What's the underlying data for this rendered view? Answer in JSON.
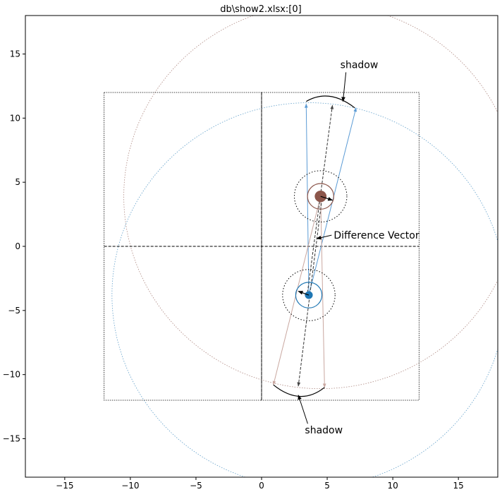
{
  "chart_data": {
    "type": "scatter",
    "title": "db\\show2.xlsx:[0]",
    "xlabel": "",
    "ylabel": "",
    "xlim": [
      -18,
      18
    ],
    "ylim": [
      -18,
      18
    ],
    "xticks": [
      -15,
      -10,
      -5,
      0,
      5,
      10,
      15
    ],
    "yticks": [
      -15,
      -10,
      -5,
      0,
      5,
      10,
      15
    ],
    "xtick_labels": [
      "−15",
      "−10",
      "−5",
      "0",
      "5",
      "10",
      "15"
    ],
    "ytick_labels": [
      "−15",
      "−10",
      "−5",
      "0",
      "5",
      "10",
      "15"
    ],
    "grid": false,
    "colors": {
      "blue": "#1f77b4",
      "brown": "#8c564b",
      "black": "#000000",
      "blue_ray": "#5b9bd5",
      "brown_ray": "#c9a7a0"
    },
    "boxes": [
      {
        "x0": -12,
        "y0": -12,
        "x1": 0,
        "y1": 12
      },
      {
        "x0": 0,
        "y0": -12,
        "x1": 12,
        "y1": 12
      }
    ],
    "axis_lines": {
      "h_from": -12,
      "h_to": 12,
      "v_from": -12,
      "v_to": 12
    },
    "objects": [
      {
        "color": "brown",
        "center": [
          4.5,
          3.9
        ],
        "marker_r": 0.45,
        "inner_r": 1.0,
        "outer_r": 2.0,
        "velocity_to": [
          5.4,
          3.6
        ],
        "big_r": 15.0
      },
      {
        "color": "blue",
        "center": [
          3.6,
          -3.8
        ],
        "marker_r": 0.3,
        "inner_r": 1.0,
        "outer_r": 2.0,
        "velocity_to": [
          2.8,
          -3.5
        ],
        "big_r": 15.0
      }
    ],
    "rays": [
      {
        "color": "blue_ray",
        "from": [
          3.6,
          -3.8
        ],
        "to": [
          3.4,
          11.1
        ]
      },
      {
        "color": "blue_ray",
        "from": [
          3.6,
          -3.8
        ],
        "to": [
          7.2,
          10.8
        ]
      },
      {
        "color": "brown_ray",
        "from": [
          4.5,
          3.9
        ],
        "to": [
          0.9,
          -10.8
        ]
      },
      {
        "color": "brown_ray",
        "from": [
          4.5,
          3.9
        ],
        "to": [
          4.8,
          -11.0
        ]
      }
    ],
    "difference_vectors": [
      {
        "from": [
          4.6,
          3.7
        ],
        "to": [
          2.8,
          -10.9
        ]
      },
      {
        "from": [
          3.5,
          -3.6
        ],
        "to": [
          5.4,
          11.0
        ]
      }
    ],
    "shadows": [
      {
        "arc_pts": [
          [
            3.4,
            11.3
          ],
          [
            5.2,
            11.7
          ],
          [
            7.1,
            10.8
          ]
        ]
      },
      {
        "arc_pts": [
          [
            0.9,
            -10.8
          ],
          [
            2.9,
            -11.7
          ],
          [
            4.8,
            -11.0
          ]
        ]
      }
    ],
    "annotations": [
      {
        "id": "shadow-top",
        "text": "shadow",
        "text_pos": [
          6.0,
          13.9
        ],
        "arrow_to": [
          6.2,
          11.3
        ]
      },
      {
        "id": "shadow-bottom",
        "text": "shadow",
        "text_pos": [
          3.3,
          -14.6
        ],
        "arrow_to": [
          2.8,
          -11.6
        ]
      },
      {
        "id": "difference-vector",
        "text": "Difference Vector",
        "text_pos": [
          5.5,
          0.6
        ],
        "arrow_to": [
          4.2,
          0.6
        ]
      }
    ]
  }
}
